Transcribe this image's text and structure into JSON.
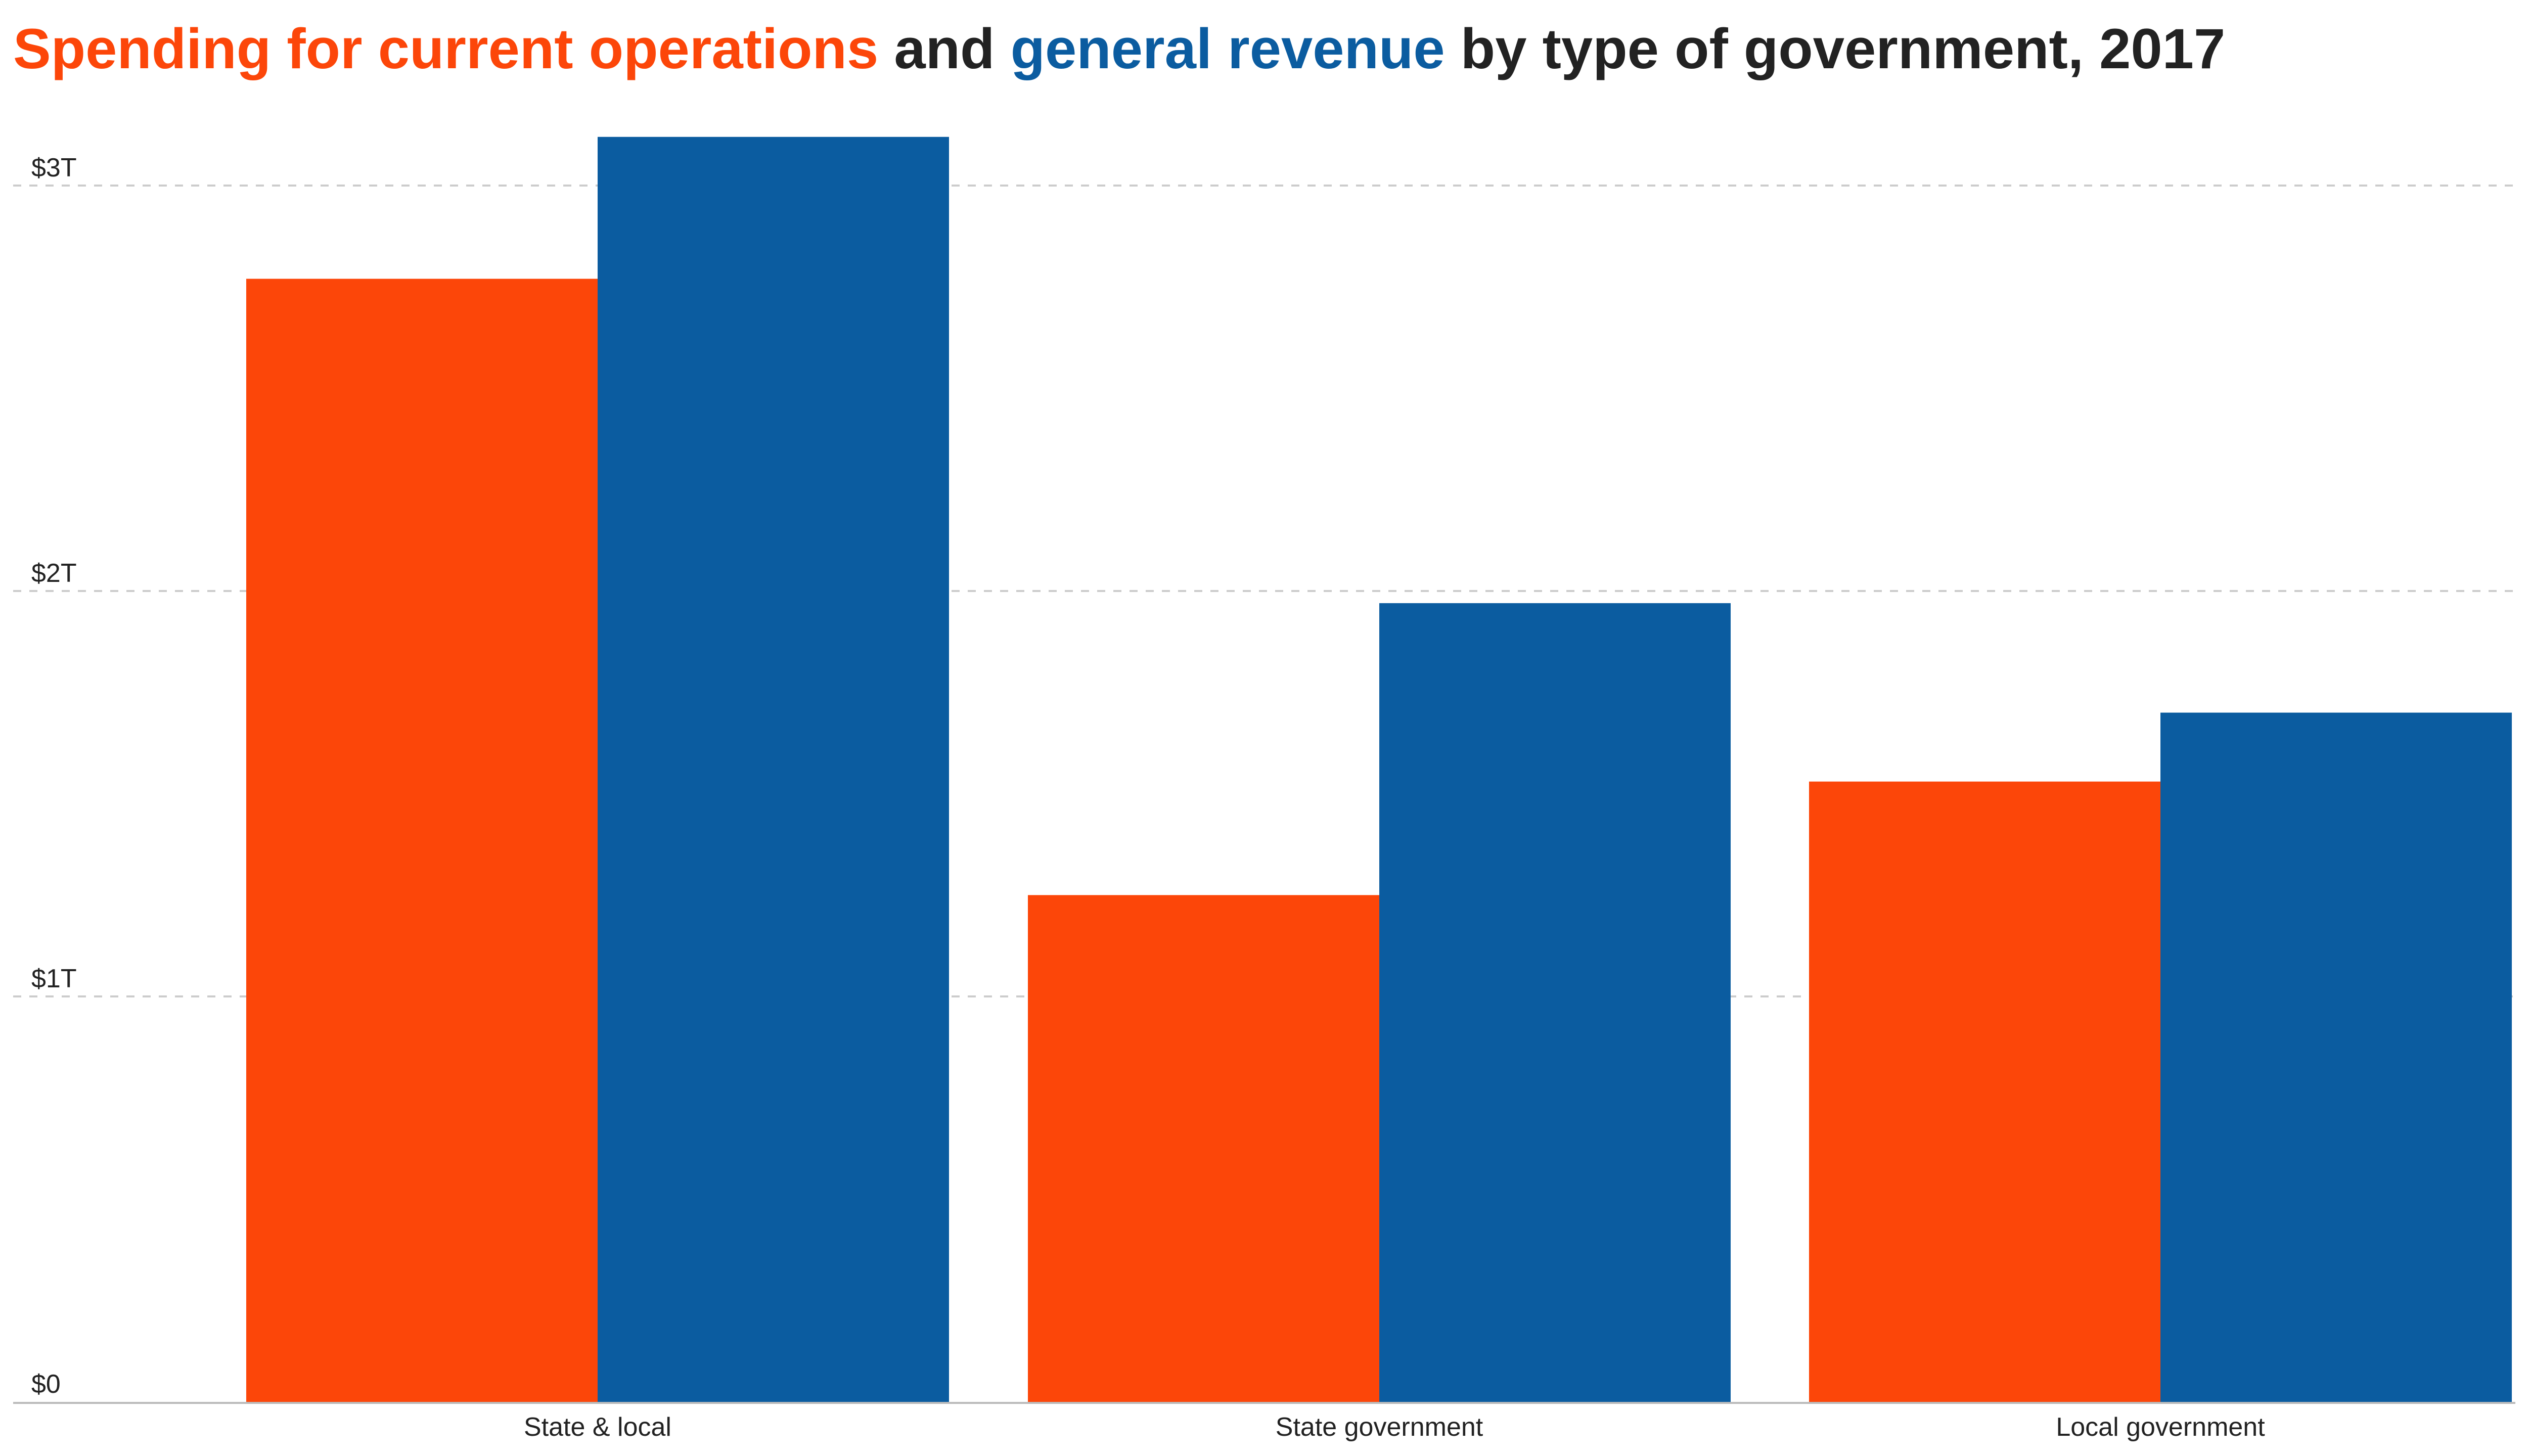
{
  "title": {
    "part1": "Spending for current operations",
    "part2": " and ",
    "part3": "general revenue",
    "part4": " by type of government, 2017"
  },
  "colors": {
    "spending": "#FC4609",
    "revenue": "#0B5CA0",
    "text": "#222222",
    "grid": "#cccccc",
    "axis": "#bbbbbb"
  },
  "chart_data": {
    "type": "bar",
    "title": "Spending for current operations and general revenue by type of government, 2017",
    "categories": [
      "State & local",
      "State government",
      "Local government"
    ],
    "series": [
      {
        "name": "Spending for current operations",
        "color": "#FC4609",
        "values": [
          2.77,
          1.25,
          1.53
        ]
      },
      {
        "name": "general revenue",
        "color": "#0B5CA0",
        "values": [
          3.12,
          1.97,
          1.7
        ]
      }
    ],
    "ylim": [
      0,
      3
    ],
    "yticks": [
      {
        "value": 0,
        "label": "$0"
      },
      {
        "value": 1,
        "label": "$1T"
      },
      {
        "value": 2,
        "label": "$2T"
      },
      {
        "value": 3,
        "label": "$3T"
      }
    ],
    "grid": true,
    "legend": "inline-title",
    "xlabel": "",
    "ylabel": ""
  }
}
